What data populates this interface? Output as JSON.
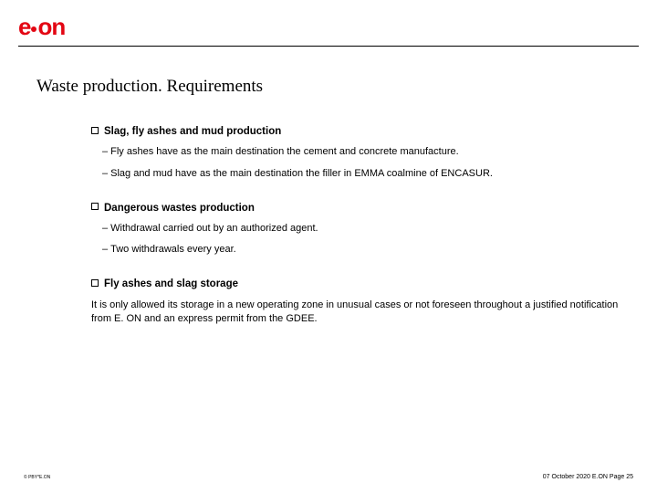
{
  "brand": {
    "color": "#e30613",
    "name_left": "e",
    "name_right": "on"
  },
  "title": "Waste production. Requirements",
  "sections": [
    {
      "heading": "Slag, fly ashes and mud production",
      "items": [
        "Fly ashes have as the main destination the cement and concrete manufacture.",
        "Slag and mud have as the main destination the filler in EMMA coalmine of ENCASUR."
      ]
    },
    {
      "heading": "Dangerous wastes production",
      "items": [
        "Withdrawal carried out by an authorized agent.",
        "Two withdrawals every year."
      ]
    },
    {
      "heading": "Fly ashes and slag storage",
      "paragraph": "  It is only allowed its storage in a new operating zone in unusual cases or not foreseen throughout a justified notification from E. ON and an express permit from the GDEE."
    }
  ],
  "footer": {
    "left": "© PBY*E.ON",
    "right": "07 October 2020  E.ON  Page 25"
  }
}
